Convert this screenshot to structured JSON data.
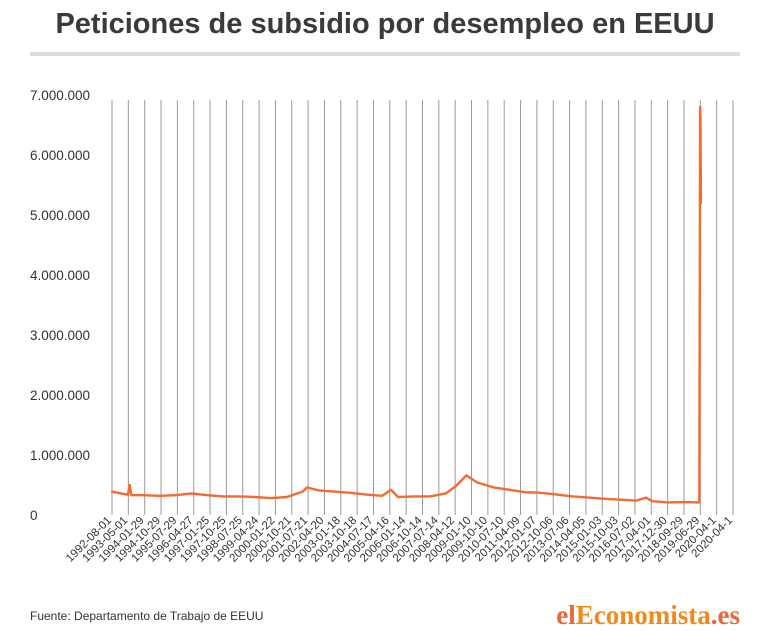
{
  "header": {
    "title": "Peticiones de subsidio por desempleo en EEUU"
  },
  "footer": {
    "source": "Fuente: Departamento de Trabajo de EEUU",
    "brand_prefix": "el",
    "brand_main": "Economista",
    "brand_suffix": ".es"
  },
  "chart_data": {
    "type": "line",
    "title": "Peticiones de subsidio por desempleo en EEUU",
    "xlabel": "",
    "ylabel": "",
    "ylim": [
      0,
      7000000
    ],
    "yticks": [
      0,
      1000000,
      2000000,
      3000000,
      4000000,
      5000000,
      6000000,
      7000000
    ],
    "ytick_labels": [
      "0",
      "1.000.000",
      "2.000.000",
      "3.000.000",
      "4.000.000",
      "5.000.000",
      "6.000.000",
      "7.000.000"
    ],
    "x_tick_labels": [
      "1992-08-01",
      "1993-05-01",
      "1994-01-29",
      "1994-10-29",
      "1995-07-29",
      "1996-04-27",
      "1997-01-25",
      "1997-10-25",
      "1998-07-25",
      "1999-04-24",
      "2000-01-22",
      "2000-10-21",
      "2001-07-21",
      "2002-04-20",
      "2003-01-18",
      "2003-10-18",
      "2004-07-17",
      "2005-04-16",
      "2006-01-14",
      "2006-10-14",
      "2007-07-14",
      "2008-04-12",
      "2009-01-10",
      "2009-10-10",
      "2010-07-10",
      "2011-04-09",
      "2012-01-07",
      "2012-10-06",
      "2013-07-06",
      "2014-04-05",
      "2015-01-03",
      "2015-10-03",
      "2016-07-02",
      "2017-04-01",
      "2017-12-30",
      "2018-09-29",
      "2019-06-29",
      "2020-04-1",
      "2020-04-1"
    ],
    "grid": "vertical",
    "line_color": "#f26b35",
    "series": [
      {
        "values": [
          [
            "1992-08-01",
            390000
          ],
          [
            "1993-01-01",
            360000
          ],
          [
            "1993-05-01",
            340000
          ],
          [
            "1993-06-01",
            500000
          ],
          [
            "1993-07-01",
            330000
          ],
          [
            "1994-01-29",
            330000
          ],
          [
            "1994-10-29",
            320000
          ],
          [
            "1995-07-29",
            330000
          ],
          [
            "1996-04-27",
            360000
          ],
          [
            "1997-01-25",
            330000
          ],
          [
            "1997-10-25",
            310000
          ],
          [
            "1998-07-25",
            310000
          ],
          [
            "1999-04-24",
            300000
          ],
          [
            "2000-01-22",
            280000
          ],
          [
            "2000-10-21",
            300000
          ],
          [
            "2001-07-21",
            390000
          ],
          [
            "2001-10-01",
            460000
          ],
          [
            "2002-04-20",
            410000
          ],
          [
            "2003-01-18",
            390000
          ],
          [
            "2003-10-18",
            370000
          ],
          [
            "2004-07-17",
            340000
          ],
          [
            "2005-04-16",
            320000
          ],
          [
            "2005-09-15",
            420000
          ],
          [
            "2006-01-14",
            300000
          ],
          [
            "2006-10-14",
            310000
          ],
          [
            "2007-07-14",
            310000
          ],
          [
            "2008-04-12",
            360000
          ],
          [
            "2008-10-01",
            480000
          ],
          [
            "2009-03-28",
            660000
          ],
          [
            "2009-10-10",
            540000
          ],
          [
            "2010-07-10",
            460000
          ],
          [
            "2011-04-09",
            420000
          ],
          [
            "2012-01-07",
            380000
          ],
          [
            "2012-10-06",
            370000
          ],
          [
            "2013-07-06",
            340000
          ],
          [
            "2014-04-05",
            310000
          ],
          [
            "2015-01-03",
            290000
          ],
          [
            "2015-10-03",
            270000
          ],
          [
            "2016-07-02",
            255000
          ],
          [
            "2017-04-01",
            240000
          ],
          [
            "2017-09-09",
            290000
          ],
          [
            "2017-12-30",
            230000
          ],
          [
            "2018-09-29",
            210000
          ],
          [
            "2019-06-29",
            215000
          ],
          [
            "2020-03-07",
            210000
          ],
          [
            "2020-03-14",
            250000
          ],
          [
            "2020-03-21",
            3300000
          ],
          [
            "2020-03-28",
            6800000
          ],
          [
            "2020-04-04",
            6600000
          ],
          [
            "2020-04-11",
            5200000
          ]
        ]
      }
    ]
  }
}
